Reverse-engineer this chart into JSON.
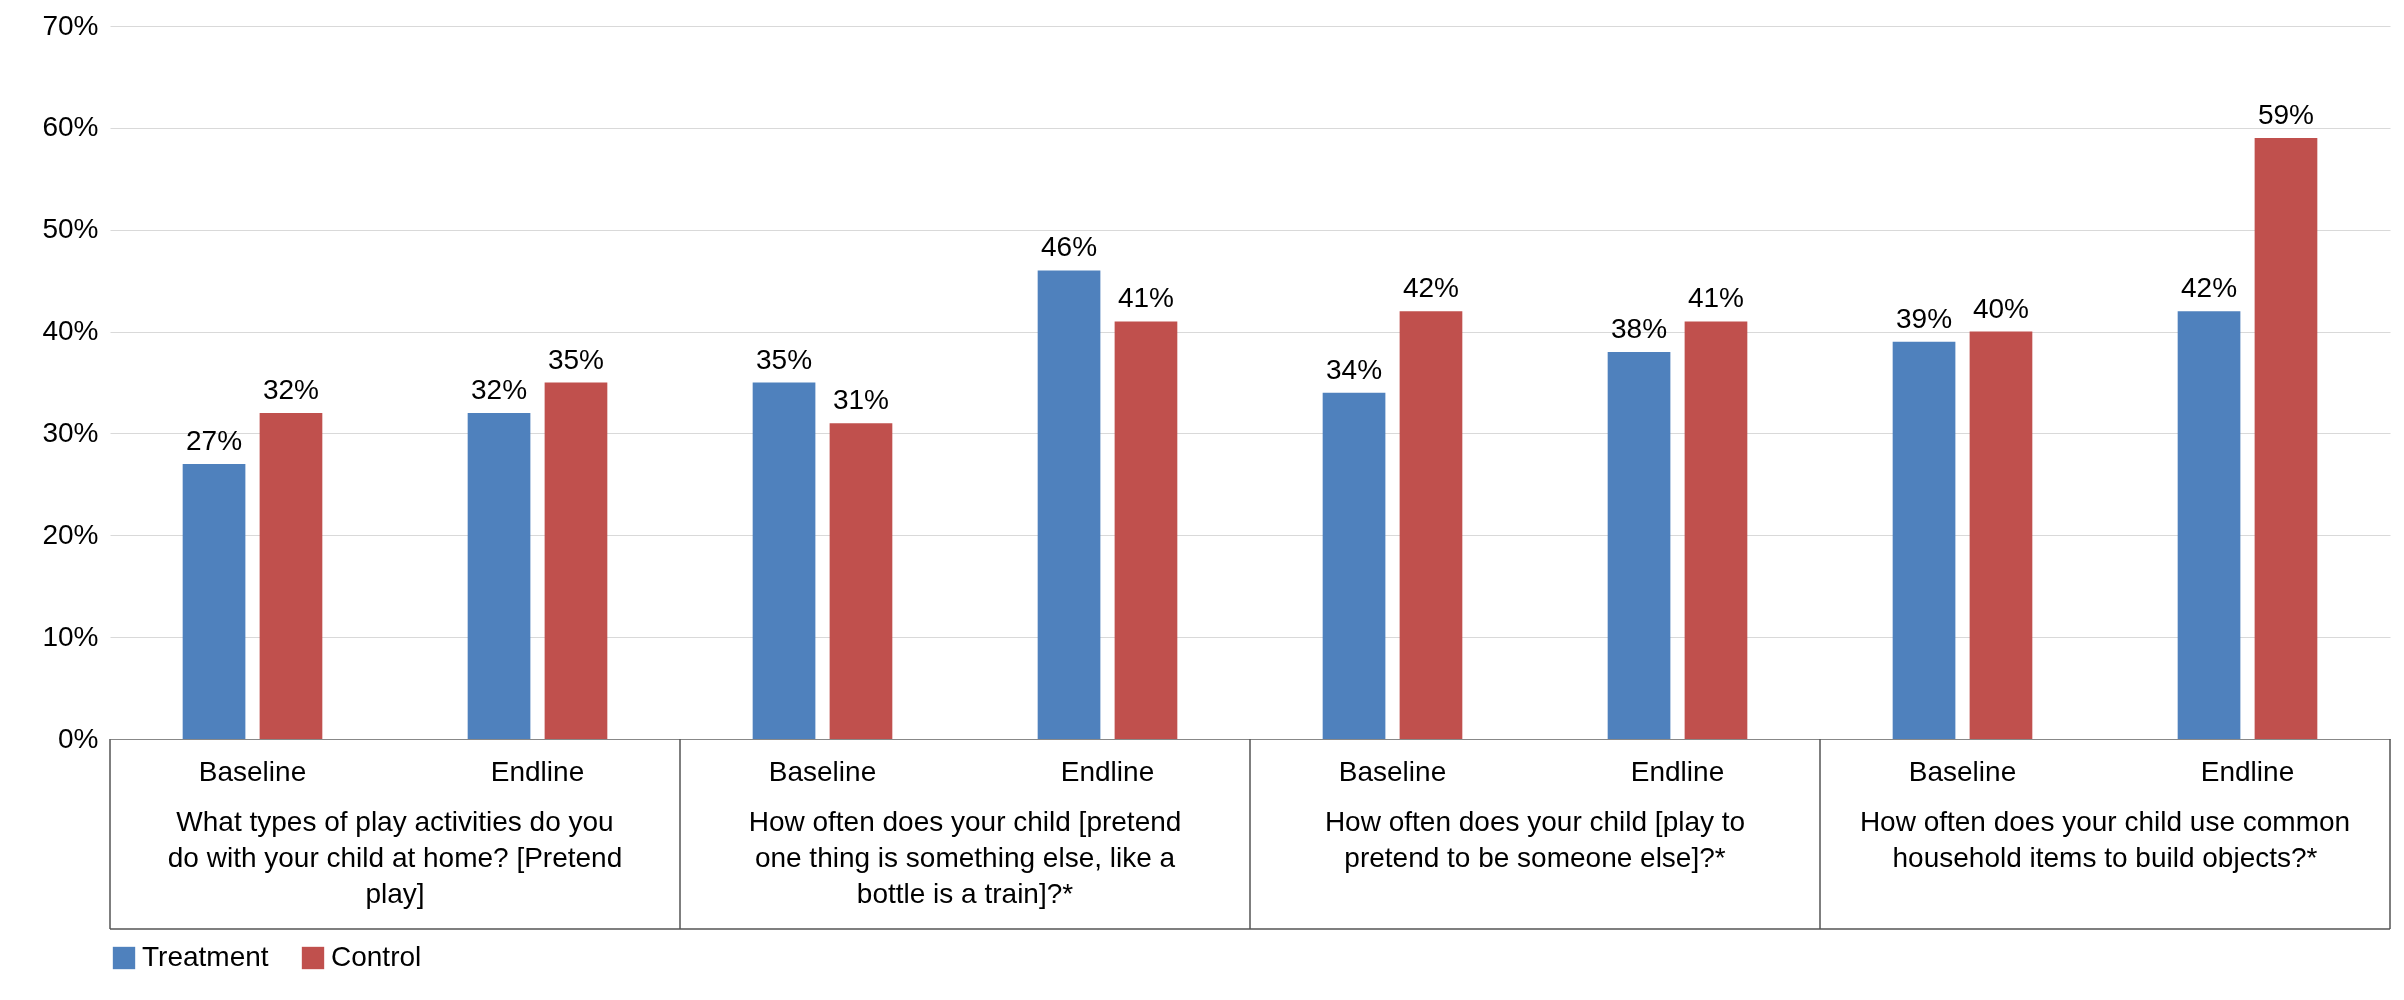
{
  "chart_data": {
    "type": "bar",
    "categories": [
      "Baseline",
      "Endline",
      "Baseline",
      "Endline",
      "Baseline",
      "Endline",
      "Baseline",
      "Endline"
    ],
    "series": [
      {
        "name": "Treatment",
        "color": "#4f81bd",
        "values": [
          27,
          32,
          35,
          46,
          34,
          38,
          39,
          42
        ],
        "value_labels": [
          "27%",
          "32%",
          "35%",
          "46%",
          "34%",
          "38%",
          "39%",
          "42%"
        ]
      },
      {
        "name": "Control",
        "color": "#c0504d",
        "values": [
          32,
          35,
          31,
          41,
          42,
          41,
          40,
          59
        ],
        "value_labels": [
          "32%",
          "35%",
          "31%",
          "41%",
          "42%",
          "41%",
          "40%",
          "59%"
        ]
      }
    ],
    "annotations": [
      "What types of play activities do you do with your child at home? [Pretend play]",
      "How often does your child [pretend one thing is something else, like a bottle is a train]?*",
      "How often does your child [play to pretend to be someone else]?*",
      "How often does your child use common household items to build objects?*"
    ],
    "ylim": [
      0,
      70
    ],
    "yticks": [
      {
        "value": 0,
        "label": "0%"
      },
      {
        "value": 10,
        "label": "10%"
      },
      {
        "value": 20,
        "label": "20%"
      },
      {
        "value": 30,
        "label": "30%"
      },
      {
        "value": 40,
        "label": "40%"
      },
      {
        "value": 50,
        "label": "50%"
      },
      {
        "value": 60,
        "label": "60%"
      },
      {
        "value": 70,
        "label": "70%"
      }
    ],
    "grid": "y",
    "legend": "bottom"
  }
}
